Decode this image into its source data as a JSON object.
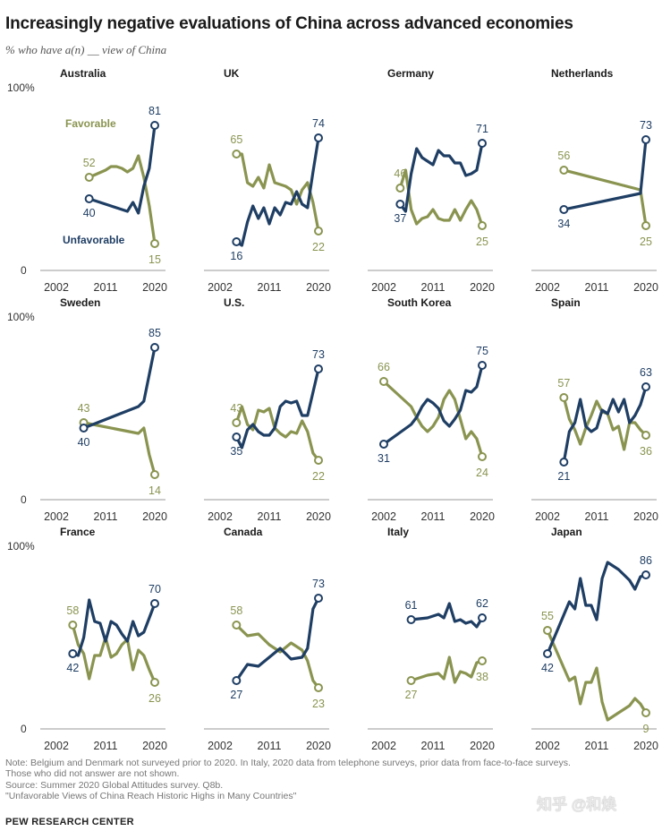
{
  "title": "Increasingly negative evaluations of China across advanced economies",
  "subtitle": "% who have a(n) __ view of China",
  "y_top_label": "100%",
  "y_bottom_label": "0",
  "x_tick_labels": [
    "2002",
    "2011",
    "2020"
  ],
  "notes": [
    "Note: Belgium and Denmark not surveyed prior to 2020. In Italy, 2020 data from telephone surveys, prior data from face-to-face surveys.",
    "Those who did not answer are not shown.",
    "Source: Summer 2020 Global Attitudes survey. Q8b.",
    "\"Unfavorable Views of China Reach Historic Highs in Many Countries\""
  ],
  "org": "PEW RESEARCH CENTER",
  "watermark": "知乎 @和焕",
  "colors": {
    "favorable": "#8a9450",
    "unfavorable": "#1f3e64",
    "axis": "#999999",
    "grid_text": "#333333"
  },
  "chart_data": [
    {
      "type": "line",
      "title": "Australia",
      "xlim": [
        2002,
        2020
      ],
      "ylim": [
        0,
        100
      ],
      "series_labels_inline": {
        "favorable": "Favorable",
        "unfavorable": "Unfavorable"
      },
      "series": [
        {
          "name": "Favorable",
          "x": [
            2008,
            2011,
            2012,
            2013,
            2014,
            2015,
            2016,
            2017,
            2018,
            2019,
            2020
          ],
          "values": [
            52,
            56,
            58,
            58,
            57,
            55,
            57,
            64,
            52,
            36,
            15
          ]
        },
        {
          "name": "Unfavorable",
          "x": [
            2008,
            2011,
            2012,
            2013,
            2014,
            2015,
            2016,
            2017,
            2018,
            2019,
            2020
          ],
          "values": [
            40,
            37,
            36,
            35,
            34,
            33,
            38,
            32,
            47,
            57,
            81
          ]
        }
      ],
      "labels": {
        "fav_first": "52",
        "unfav_first": "40",
        "fav_last": "15",
        "unfav_last": "81"
      }
    },
    {
      "type": "line",
      "title": "UK",
      "xlim": [
        2002,
        2020
      ],
      "ylim": [
        0,
        100
      ],
      "series": [
        {
          "name": "Favorable",
          "x": [
            2005,
            2006,
            2007,
            2008,
            2009,
            2010,
            2011,
            2012,
            2013,
            2014,
            2015,
            2016,
            2017,
            2018,
            2019,
            2020
          ],
          "values": [
            65,
            65,
            49,
            47,
            52,
            46,
            59,
            49,
            48,
            47,
            45,
            37,
            45,
            49,
            38,
            22
          ]
        },
        {
          "name": "Unfavorable",
          "x": [
            2005,
            2006,
            2007,
            2008,
            2009,
            2010,
            2011,
            2012,
            2013,
            2014,
            2015,
            2016,
            2017,
            2018,
            2019,
            2020
          ],
          "values": [
            16,
            14,
            27,
            36,
            29,
            35,
            26,
            35,
            31,
            38,
            37,
            44,
            37,
            35,
            55,
            74
          ]
        }
      ],
      "labels": {
        "fav_first": "65",
        "unfav_first": "16",
        "fav_last": "22",
        "unfav_last": "74"
      }
    },
    {
      "type": "line",
      "title": "Germany",
      "xlim": [
        2002,
        2020
      ],
      "ylim": [
        0,
        100
      ],
      "series": [
        {
          "name": "Favorable",
          "x": [
            2005,
            2006,
            2007,
            2008,
            2009,
            2010,
            2011,
            2012,
            2013,
            2014,
            2015,
            2016,
            2017,
            2018,
            2019,
            2020
          ],
          "values": [
            46,
            56,
            34,
            26,
            29,
            30,
            34,
            29,
            28,
            28,
            34,
            28,
            34,
            39,
            34,
            25
          ]
        },
        {
          "name": "Unfavorable",
          "x": [
            2005,
            2006,
            2007,
            2008,
            2009,
            2010,
            2011,
            2012,
            2013,
            2014,
            2015,
            2016,
            2017,
            2018,
            2019,
            2020
          ],
          "values": [
            37,
            33,
            54,
            68,
            63,
            61,
            59,
            67,
            64,
            64,
            60,
            60,
            53,
            54,
            56,
            71
          ]
        }
      ],
      "labels": {
        "fav_first": "46",
        "unfav_first": "37",
        "fav_last": "25",
        "unfav_last": "71"
      }
    },
    {
      "type": "line",
      "title": "Netherlands",
      "xlim": [
        2002,
        2020
      ],
      "ylim": [
        0,
        100
      ],
      "series": [
        {
          "name": "Favorable",
          "x": [
            2005,
            2019,
            2020
          ],
          "values": [
            56,
            45,
            25
          ]
        },
        {
          "name": "Unfavorable",
          "x": [
            2005,
            2019,
            2020
          ],
          "values": [
            34,
            43,
            73
          ]
        }
      ],
      "labels": {
        "fav_first": "56",
        "unfav_first": "34",
        "fav_last": "25",
        "unfav_last": "73"
      }
    },
    {
      "type": "line",
      "title": "Sweden",
      "xlim": [
        2002,
        2020
      ],
      "ylim": [
        0,
        100
      ],
      "series": [
        {
          "name": "Favorable",
          "x": [
            2007,
            2017,
            2018,
            2019,
            2020
          ],
          "values": [
            43,
            37,
            40,
            25,
            14
          ]
        },
        {
          "name": "Unfavorable",
          "x": [
            2007,
            2017,
            2018,
            2019,
            2020
          ],
          "values": [
            40,
            52,
            55,
            70,
            85
          ]
        }
      ],
      "labels": {
        "fav_first": "43",
        "unfav_first": "40",
        "fav_last": "14",
        "unfav_last": "85"
      }
    },
    {
      "type": "line",
      "title": "U.S.",
      "xlim": [
        2002,
        2020
      ],
      "ylim": [
        0,
        100
      ],
      "series": [
        {
          "name": "Favorable",
          "x": [
            2005,
            2006,
            2007,
            2008,
            2009,
            2010,
            2011,
            2012,
            2013,
            2014,
            2015,
            2016,
            2017,
            2018,
            2019,
            2020
          ],
          "values": [
            43,
            52,
            42,
            39,
            50,
            49,
            51,
            40,
            37,
            35,
            38,
            37,
            44,
            38,
            26,
            22
          ]
        },
        {
          "name": "Unfavorable",
          "x": [
            2005,
            2006,
            2007,
            2008,
            2009,
            2010,
            2011,
            2012,
            2013,
            2014,
            2015,
            2016,
            2017,
            2018,
            2019,
            2020
          ],
          "values": [
            35,
            29,
            39,
            42,
            38,
            36,
            36,
            40,
            52,
            55,
            54,
            55,
            47,
            47,
            60,
            73
          ]
        }
      ],
      "labels": {
        "fav_first": "43",
        "unfav_first": "35",
        "fav_last": "22",
        "unfav_last": "73"
      }
    },
    {
      "type": "line",
      "title": "South Korea",
      "xlim": [
        2002,
        2020
      ],
      "ylim": [
        0,
        100
      ],
      "series": [
        {
          "name": "Favorable",
          "x": [
            2002,
            2007,
            2008,
            2009,
            2010,
            2011,
            2012,
            2013,
            2014,
            2015,
            2016,
            2017,
            2018,
            2019,
            2020
          ],
          "values": [
            66,
            52,
            46,
            41,
            38,
            41,
            46,
            56,
            61,
            56,
            45,
            34,
            38,
            34,
            24
          ]
        },
        {
          "name": "Unfavorable",
          "x": [
            2002,
            2007,
            2008,
            2009,
            2010,
            2011,
            2012,
            2013,
            2014,
            2015,
            2016,
            2017,
            2018,
            2019,
            2020
          ],
          "values": [
            31,
            42,
            46,
            52,
            56,
            54,
            51,
            44,
            41,
            45,
            50,
            61,
            60,
            63,
            75
          ]
        }
      ],
      "labels": {
        "fav_first": "66",
        "unfav_first": "31",
        "fav_last": "24",
        "unfav_last": "75"
      }
    },
    {
      "type": "line",
      "title": "Spain",
      "xlim": [
        2002,
        2020
      ],
      "ylim": [
        0,
        100
      ],
      "series": [
        {
          "name": "Favorable",
          "x": [
            2005,
            2006,
            2007,
            2008,
            2009,
            2010,
            2011,
            2012,
            2013,
            2014,
            2015,
            2016,
            2017,
            2018,
            2019,
            2020
          ],
          "values": [
            57,
            45,
            39,
            31,
            40,
            47,
            55,
            49,
            48,
            39,
            41,
            28,
            43,
            43,
            39,
            36
          ]
        },
        {
          "name": "Unfavorable",
          "x": [
            2005,
            2006,
            2007,
            2008,
            2009,
            2010,
            2011,
            2012,
            2013,
            2014,
            2015,
            2016,
            2017,
            2018,
            2019,
            2020
          ],
          "values": [
            21,
            38,
            43,
            56,
            41,
            38,
            40,
            50,
            48,
            56,
            49,
            56,
            43,
            47,
            53,
            63
          ]
        }
      ],
      "labels": {
        "fav_first": "57",
        "unfav_first": "21",
        "fav_last": "36",
        "unfav_last": "63"
      }
    },
    {
      "type": "line",
      "title": "France",
      "xlim": [
        2002,
        2020
      ],
      "ylim": [
        0,
        100
      ],
      "series": [
        {
          "name": "Favorable",
          "x": [
            2005,
            2006,
            2007,
            2008,
            2009,
            2010,
            2011,
            2012,
            2013,
            2014,
            2015,
            2016,
            2017,
            2018,
            2019,
            2020
          ],
          "values": [
            58,
            47,
            42,
            28,
            41,
            41,
            51,
            40,
            42,
            47,
            50,
            33,
            44,
            41,
            33,
            26
          ]
        },
        {
          "name": "Unfavorable",
          "x": [
            2005,
            2006,
            2007,
            2008,
            2009,
            2010,
            2011,
            2012,
            2013,
            2014,
            2015,
            2016,
            2017,
            2018,
            2019,
            2020
          ],
          "values": [
            42,
            41,
            51,
            72,
            60,
            59,
            49,
            60,
            58,
            53,
            49,
            60,
            52,
            54,
            62,
            70
          ]
        }
      ],
      "labels": {
        "fav_first": "58",
        "unfav_first": "42",
        "fav_last": "26",
        "unfav_last": "70"
      }
    },
    {
      "type": "line",
      "title": "Canada",
      "xlim": [
        2002,
        2020
      ],
      "ylim": [
        0,
        100
      ],
      "series": [
        {
          "name": "Favorable",
          "x": [
            2005,
            2007,
            2009,
            2011,
            2013,
            2015,
            2017,
            2018,
            2019,
            2020
          ],
          "values": [
            58,
            52,
            53,
            47,
            43,
            48,
            44,
            38,
            27,
            23
          ]
        },
        {
          "name": "Unfavorable",
          "x": [
            2005,
            2007,
            2009,
            2011,
            2013,
            2015,
            2017,
            2018,
            2019,
            2020
          ],
          "values": [
            27,
            36,
            35,
            40,
            45,
            39,
            40,
            45,
            67,
            73
          ]
        }
      ],
      "labels": {
        "fav_first": "58",
        "unfav_first": "27",
        "fav_last": "23",
        "unfav_last": "73"
      }
    },
    {
      "type": "line",
      "title": "Italy",
      "xlim": [
        2002,
        2020
      ],
      "ylim": [
        0,
        100
      ],
      "series": [
        {
          "name": "Favorable",
          "x": [
            2007,
            2010,
            2012,
            2013,
            2014,
            2015,
            2016,
            2017,
            2018,
            2019,
            2020
          ],
          "values": [
            27,
            30,
            31,
            28,
            40,
            26,
            32,
            31,
            29,
            37,
            38
          ]
        },
        {
          "name": "Unfavorable",
          "x": [
            2007,
            2010,
            2012,
            2013,
            2014,
            2015,
            2016,
            2017,
            2018,
            2019,
            2020
          ],
          "values": [
            61,
            62,
            64,
            62,
            70,
            60,
            61,
            59,
            60,
            57,
            62
          ]
        }
      ],
      "labels": {
        "fav_first": "27",
        "unfav_first": "61",
        "fav_last": "38",
        "unfav_last": "62"
      }
    },
    {
      "type": "line",
      "title": "Japan",
      "xlim": [
        2002,
        2020
      ],
      "ylim": [
        0,
        100
      ],
      "series": [
        {
          "name": "Favorable",
          "x": [
            2002,
            2006,
            2007,
            2008,
            2009,
            2010,
            2011,
            2012,
            2013,
            2014,
            2015,
            2016,
            2017,
            2018,
            2019,
            2020
          ],
          "values": [
            55,
            27,
            29,
            14,
            26,
            26,
            34,
            15,
            5,
            7,
            9,
            11,
            13,
            17,
            14,
            9
          ]
        },
        {
          "name": "Unfavorable",
          "x": [
            2002,
            2006,
            2007,
            2008,
            2009,
            2010,
            2011,
            2012,
            2013,
            2014,
            2015,
            2016,
            2017,
            2018,
            2019,
            2020
          ],
          "values": [
            42,
            71,
            67,
            84,
            69,
            69,
            61,
            84,
            93,
            91,
            89,
            86,
            83,
            78,
            85,
            86
          ]
        }
      ],
      "labels": {
        "fav_first": "55",
        "unfav_first": "42",
        "fav_last": "9",
        "unfav_last": "86"
      }
    }
  ]
}
